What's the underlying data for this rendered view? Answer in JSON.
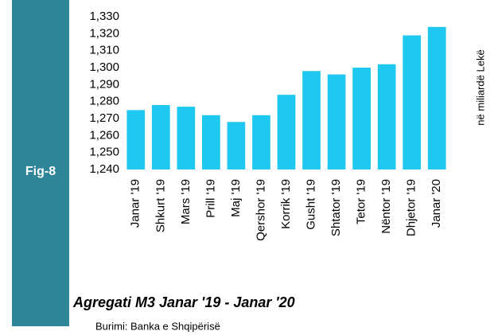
{
  "chart_data": {
    "type": "bar",
    "figure_label": "Fig-8",
    "title": "Agregati M3 Janar '19 - Janar '20",
    "source": "Burimi: Banka e Shqipërisë",
    "y_axis_label": "në miliardë  Lekë",
    "categories": [
      "Janar '19",
      "Shkurt '19",
      "Mars '19",
      "Prill '19",
      "Maj '19",
      "Qershor '19",
      "Korrik '19",
      "Gusht '19",
      "Shtator '19",
      "Tetor '19",
      "Nëntor '19",
      "Dhjetor '19",
      "Janar '20"
    ],
    "values": [
      1275,
      1278,
      1277,
      1272,
      1268,
      1272,
      1284,
      1298,
      1296,
      1300,
      1302,
      1319,
      1324
    ],
    "color": "#1ec8f0",
    "ylim": [
      1240,
      1330
    ],
    "yticks": [
      {
        "value": 1240,
        "label": "1,240"
      },
      {
        "value": 1250,
        "label": "1,250"
      },
      {
        "value": 1260,
        "label": "1,260"
      },
      {
        "value": 1270,
        "label": "1,270"
      },
      {
        "value": 1280,
        "label": "1,280"
      },
      {
        "value": 1290,
        "label": "1,290"
      },
      {
        "value": 1300,
        "label": "1,300"
      },
      {
        "value": 1310,
        "label": "1,310"
      },
      {
        "value": 1320,
        "label": "1,320"
      },
      {
        "value": 1330,
        "label": "1,330"
      }
    ],
    "grid": false
  }
}
